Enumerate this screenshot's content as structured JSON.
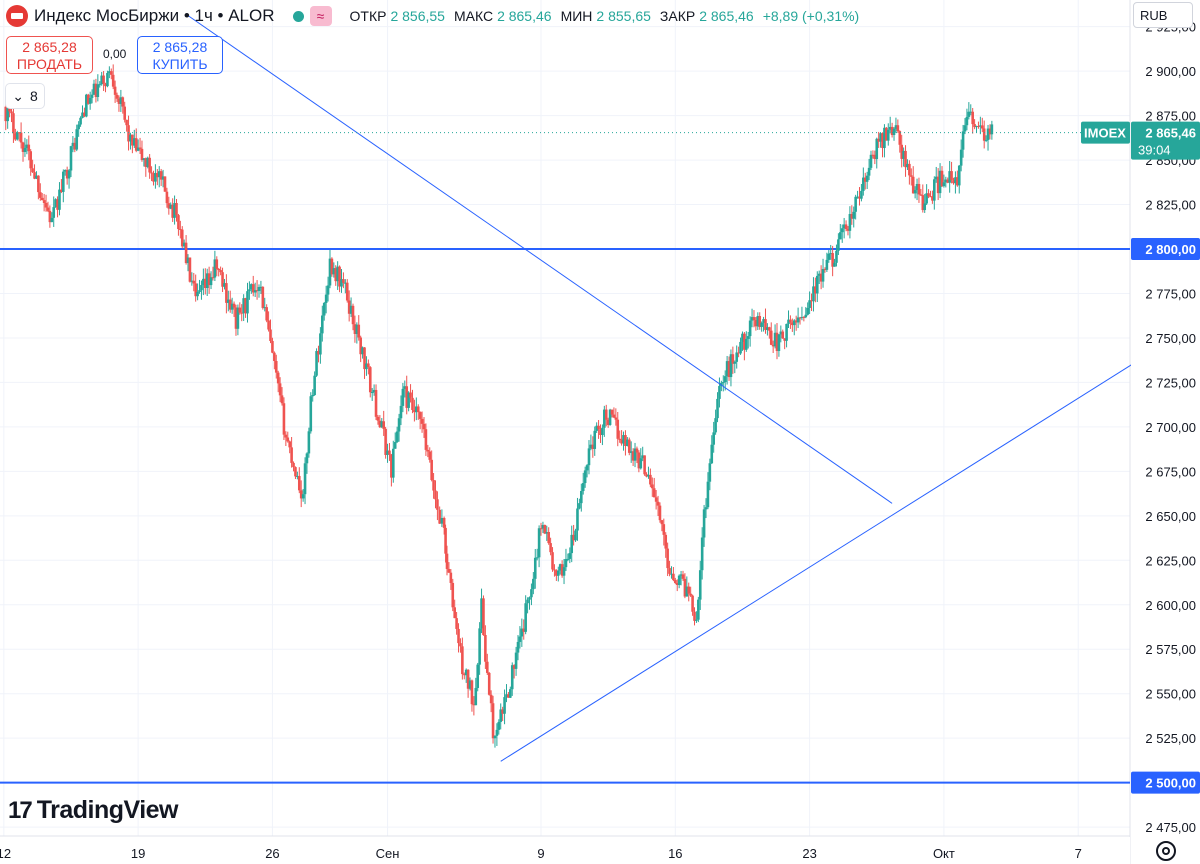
{
  "header": {
    "title": "Индекс МосБиржи • 1ч • ALOR",
    "ohlc": [
      {
        "key": "ОТКР",
        "value": "2 856,55"
      },
      {
        "key": "МАКС",
        "value": "2 865,46"
      },
      {
        "key": "МИН",
        "value": "2 855,65"
      },
      {
        "key": "ЗАКР",
        "value": "2 865,46"
      }
    ],
    "change": "+8,89 (+0,31%)"
  },
  "trade": {
    "sell_price": "2 865,28",
    "sell_label": "ПРОДАТЬ",
    "spread": "0,00",
    "buy_price": "2 865,28",
    "buy_label": "КУПИТЬ"
  },
  "indicators_count": "8",
  "currency": "RUB",
  "brand": "TradingView",
  "colors": {
    "up": "#26a69a",
    "down": "#ef5350",
    "line": "#2962ff",
    "accent": "#26a69a"
  },
  "chart_data": {
    "type": "candlestick",
    "symbol": "IMOEX",
    "interval": "1h",
    "ylim": [
      2470,
      2940
    ],
    "y_ticks": [
      "2 925,00",
      "2 900,00",
      "2 875,00",
      "2 850,00",
      "2 825,00",
      "2 775,00",
      "2 750,00",
      "2 725,00",
      "2 700,00",
      "2 675,00",
      "2 650,00",
      "2 625,00",
      "2 600,00",
      "2 575,00",
      "2 550,00",
      "2 525,00",
      "2 475,00"
    ],
    "y_tick_values": [
      2925,
      2900,
      2875,
      2850,
      2825,
      2775,
      2750,
      2725,
      2700,
      2675,
      2650,
      2625,
      2600,
      2575,
      2550,
      2525,
      2475
    ],
    "x_ticks": [
      "12",
      "19",
      "26",
      "Сен",
      "9",
      "16",
      "23",
      "Окт",
      "7"
    ],
    "x_tick_pos": [
      0,
      7,
      14,
      20,
      28,
      35,
      42,
      49,
      56
    ],
    "x_range": [
      -0.2,
      58.7
    ],
    "last_price": {
      "symbol": "IMOEX",
      "value": 2865.46,
      "label": "2 865,46",
      "countdown": "39:04"
    },
    "horizontal_levels": [
      {
        "value": 2800,
        "label": "2 800,00"
      },
      {
        "value": 2500,
        "label": "2 500,00"
      }
    ],
    "trendlines": [
      {
        "from": [
          9.5,
          2932
        ],
        "to": [
          46.3,
          2657
        ]
      },
      {
        "from": [
          25.9,
          2512
        ],
        "to": [
          61.0,
          2750
        ]
      }
    ],
    "path": [
      [
        0,
        2880
      ],
      [
        1.2,
        2855
      ],
      [
        2.5,
        2815
      ],
      [
        4.2,
        2880
      ],
      [
        5.6,
        2900
      ],
      [
        6.6,
        2860
      ],
      [
        8.3,
        2835
      ],
      [
        9.1,
        2815
      ],
      [
        10.0,
        2770
      ],
      [
        11.1,
        2790
      ],
      [
        12.1,
        2760
      ],
      [
        13.3,
        2783
      ],
      [
        14.7,
        2695
      ],
      [
        15.6,
        2660
      ],
      [
        16.0,
        2715
      ],
      [
        17.0,
        2792
      ],
      [
        17.7,
        2780
      ],
      [
        18.6,
        2745
      ],
      [
        20.2,
        2677
      ],
      [
        20.8,
        2720
      ],
      [
        21.8,
        2700
      ],
      [
        22.6,
        2654
      ],
      [
        22.95,
        2642
      ],
      [
        23.1,
        2622
      ],
      [
        23.9,
        2565
      ],
      [
        24.5,
        2546
      ],
      [
        24.9,
        2598
      ],
      [
        25.3,
        2548
      ],
      [
        25.6,
        2522
      ],
      [
        26.1,
        2545
      ],
      [
        27.0,
        2583
      ],
      [
        28.1,
        2650
      ],
      [
        28.8,
        2612
      ],
      [
        29.7,
        2637
      ],
      [
        30.5,
        2688
      ],
      [
        31.4,
        2707
      ],
      [
        32.5,
        2690
      ],
      [
        33.6,
        2675
      ],
      [
        34.0,
        2658
      ],
      [
        34.7,
        2620
      ],
      [
        35.7,
        2608
      ],
      [
        36.1,
        2593
      ],
      [
        36.5,
        2650
      ],
      [
        37.2,
        2720
      ],
      [
        38.1,
        2740
      ],
      [
        39.3,
        2762
      ],
      [
        40.3,
        2747
      ],
      [
        41.7,
        2765
      ],
      [
        42.9,
        2790
      ],
      [
        43.8,
        2808
      ],
      [
        44.6,
        2830
      ],
      [
        45.6,
        2860
      ],
      [
        46.4,
        2870
      ],
      [
        47.2,
        2840
      ],
      [
        48.0,
        2826
      ],
      [
        49.0,
        2842
      ],
      [
        49.7,
        2835
      ],
      [
        50.2,
        2880
      ],
      [
        51.0,
        2862
      ],
      [
        51.5,
        2865.46
      ]
    ]
  }
}
